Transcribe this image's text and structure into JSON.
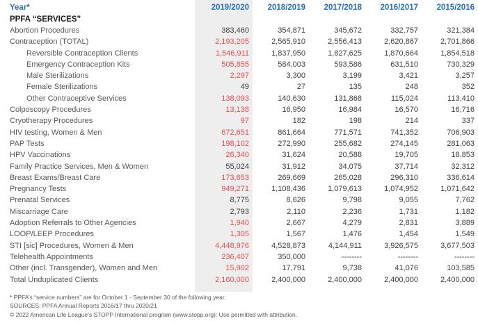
{
  "header": {
    "row_label": "Year*",
    "section_title": "PPFA “SERVICES”",
    "years": [
      "2019/2020",
      "2018/2019",
      "2017/2018",
      "2016/2017",
      "2015/2016"
    ]
  },
  "table": {
    "rows": [
      {
        "label": "Abortion Procedures",
        "indent": false,
        "red": false,
        "values": [
          "383,460",
          "354,871",
          "345,672",
          "332,757",
          "321,384"
        ]
      },
      {
        "label": "Contraception (TOTAL)",
        "indent": false,
        "red": true,
        "values": [
          "2,193,205",
          "2,565,910",
          "2,556,413",
          "2,620,867",
          "2,701,866"
        ]
      },
      {
        "label": "Reversible Contraception Clients",
        "indent": true,
        "red": true,
        "values": [
          "1,546,911",
          "1,837,950",
          "1,827,625",
          "1,870,664",
          "1,854,518"
        ]
      },
      {
        "label": "Emergency Contraception Kits",
        "indent": true,
        "red": true,
        "values": [
          "505,855",
          "584,003",
          "593,586",
          "631,510",
          "730,329"
        ]
      },
      {
        "label": "Male Sterilizations",
        "indent": true,
        "red": true,
        "values": [
          "2,297",
          "3,300",
          "3,199",
          "3,421",
          "3,257"
        ]
      },
      {
        "label": "Female Sterilizations",
        "indent": true,
        "red": false,
        "values": [
          "49",
          "27",
          "135",
          "248",
          "352"
        ]
      },
      {
        "label": "Other Contraceptive Services",
        "indent": true,
        "red": true,
        "values": [
          "138,093",
          "140,630",
          "131,868",
          "115,024",
          "113,410"
        ]
      },
      {
        "label": "Colposcopy Procedures",
        "indent": false,
        "red": true,
        "values": [
          "13,138",
          "16,950",
          "16,984",
          "16,570",
          "16,716"
        ]
      },
      {
        "label": "Cryotherapy Procedures",
        "indent": false,
        "red": true,
        "values": [
          "97",
          "182",
          "198",
          "214",
          "337"
        ]
      },
      {
        "label": "HIV testing, Women & Men",
        "indent": false,
        "red": true,
        "values": [
          "672,651",
          "861,664",
          "771,571",
          "741,352",
          "706,903"
        ]
      },
      {
        "label": "PAP Tests",
        "indent": false,
        "red": true,
        "values": [
          "198,102",
          "272,990",
          "255,682",
          "274,145",
          "281,063"
        ]
      },
      {
        "label": "HPV Vaccinations",
        "indent": false,
        "red": true,
        "values": [
          "26,340",
          "31,624",
          "20,588",
          "19,705",
          "18,853"
        ]
      },
      {
        "label": "Family Practice Services, Men & Women",
        "indent": false,
        "red": false,
        "values": [
          "55,024",
          "31,912",
          "34,075",
          "37,714",
          "32,312"
        ]
      },
      {
        "label": "Breast Exams/Breast Care",
        "indent": false,
        "red": true,
        "values": [
          "173,653",
          "269,669",
          "265,028",
          "296,310",
          "336,614"
        ]
      },
      {
        "label": "Pregnancy Tests",
        "indent": false,
        "red": true,
        "values": [
          "949,271",
          "1,108,436",
          "1,079,613",
          "1,074,952",
          "1,071,642"
        ]
      },
      {
        "label": "Prenatal Services",
        "indent": false,
        "red": false,
        "values": [
          "8,775",
          "8,626",
          "9,798",
          "9,055",
          "7,762"
        ]
      },
      {
        "label": "Miscarriage Care",
        "indent": false,
        "red": false,
        "values": [
          "2,793",
          "2,110",
          "2,236",
          "1,731",
          "1,182"
        ]
      },
      {
        "label": "Adoption Referrals to Other Agencies",
        "indent": false,
        "red": true,
        "values": [
          "1,940",
          "2,667",
          "4,279",
          "2,831",
          "3,889"
        ]
      },
      {
        "label": "LOOP/LEEP Procedures",
        "indent": false,
        "red": true,
        "values": [
          "1,305",
          "1,567",
          "1,476",
          "1,454",
          "1,549"
        ]
      },
      {
        "label": "STI [sic] Procedures, Women & Men",
        "indent": false,
        "red": true,
        "values": [
          "4,448,976",
          "4,528,873",
          "4,144,911",
          "3,926,575",
          "3,677,503"
        ]
      },
      {
        "label": "Telehealth Appointments",
        "indent": false,
        "red": true,
        "values": [
          "236,407",
          "350,000",
          "--------",
          "--------",
          "--------"
        ]
      },
      {
        "label": "Other (incl. Transgender), Women and Men",
        "indent": false,
        "red": true,
        "values": [
          "15,902",
          "17,791",
          "9,738",
          "41,076",
          "103,585"
        ]
      },
      {
        "label": "Total Unduplicated Clients",
        "indent": false,
        "red": true,
        "values": [
          "2,160,000",
          "2,400,000",
          "2,400,000",
          "2,400,000",
          "2,400,000"
        ]
      }
    ]
  },
  "footnotes": [
    "* PPFA’s “service numbers” are for October 1 - September 30 of the following year.",
    "SOURCES: PPFA Annual Reports 2016/17 thru 2020/21",
    "© 2022 American Life League’s STOPP International program (www.stopp.org): Use permitted with attribution."
  ],
  "colors": {
    "header_blue": "#2a6fc0",
    "decrease_red": "#ef4c4c",
    "label_gray": "#57585a",
    "value_dark": "#414143",
    "highlight_column_bg": "#eeeeef"
  }
}
